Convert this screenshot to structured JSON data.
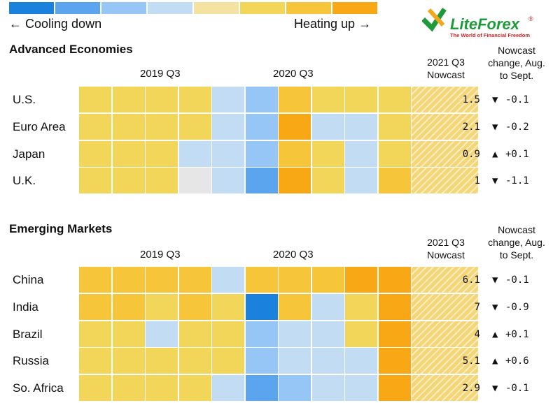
{
  "legend": {
    "colors": [
      "#1a82dc",
      "#5aa5ee",
      "#95c6f5",
      "#c2dcf3",
      "#f4e2a0",
      "#f2d65a",
      "#f6c53a",
      "#f7a814"
    ],
    "left_label": "← Cooling down",
    "right_label": "Heating up →"
  },
  "logo": {
    "name": "LiteForex",
    "tagline": "The World of Financial Freedom",
    "registered": "®"
  },
  "quarter_labels": [
    "2019 Q3",
    "2020 Q3"
  ],
  "nowcast_header": [
    "2021 Q3",
    "Nowcast"
  ],
  "change_header": [
    "Nowcast",
    "change, Aug.",
    "to Sept."
  ],
  "arrow_up": "▲",
  "arrow_down": "▼",
  "sections": [
    {
      "title": "Advanced Economies",
      "rows": [
        {
          "label": "U.S.",
          "nowcast": "1.5",
          "direction": "down",
          "change": "-0.1",
          "cells": [
            "#f2d65a",
            "#f2d65a",
            "#f2d65a",
            "#f2d65a",
            "#c2dcf3",
            "#95c6f5",
            "#f6c53a",
            "#f2d65a",
            "#f2d65a",
            "#f2d65a"
          ]
        },
        {
          "label": "Euro Area",
          "nowcast": "2.1",
          "direction": "down",
          "change": "-0.2",
          "cells": [
            "#f2d65a",
            "#f2d65a",
            "#f2d65a",
            "#f2d65a",
            "#c2dcf3",
            "#95c6f5",
            "#f7a814",
            "#c2dcf3",
            "#c2dcf3",
            "#f2d65a"
          ]
        },
        {
          "label": "Japan",
          "nowcast": "0.9",
          "direction": "up",
          "change": "+0.1",
          "cells": [
            "#f2d65a",
            "#f2d65a",
            "#f2d65a",
            "#c2dcf3",
            "#c2dcf3",
            "#95c6f5",
            "#f6c53a",
            "#f2d65a",
            "#c2dcf3",
            "#f2d65a"
          ]
        },
        {
          "label": "U.K.",
          "nowcast": "1",
          "direction": "down",
          "change": "-1.1",
          "cells": [
            "#f2d65a",
            "#f2d65a",
            "#f2d65a",
            "#e6e6e6",
            "#c2dcf3",
            "#5aa5ee",
            "#f7a814",
            "#f2d65a",
            "#c2dcf3",
            "#f6c53a"
          ]
        }
      ]
    },
    {
      "title": "Emerging Markets",
      "rows": [
        {
          "label": "China",
          "nowcast": "6.1",
          "direction": "down",
          "change": "-0.1",
          "cells": [
            "#f6c53a",
            "#f6c53a",
            "#f6c53a",
            "#f6c53a",
            "#c2dcf3",
            "#f6c53a",
            "#f6c53a",
            "#f6c53a",
            "#f7a814",
            "#f7a814"
          ]
        },
        {
          "label": "India",
          "nowcast": "7",
          "direction": "down",
          "change": "-0.9",
          "cells": [
            "#f6c53a",
            "#f6c53a",
            "#f2d65a",
            "#f6c53a",
            "#f2d65a",
            "#1a82dc",
            "#f6c53a",
            "#c2dcf3",
            "#f2d65a",
            "#f7a814"
          ]
        },
        {
          "label": "Brazil",
          "nowcast": "4",
          "direction": "up",
          "change": "+0.1",
          "cells": [
            "#f2d65a",
            "#f2d65a",
            "#c2dcf3",
            "#f2d65a",
            "#f2d65a",
            "#95c6f5",
            "#c2dcf3",
            "#c2dcf3",
            "#f2d65a",
            "#f7a814"
          ]
        },
        {
          "label": "Russia",
          "nowcast": "5.1",
          "direction": "up",
          "change": "+0.6",
          "cells": [
            "#f2d65a",
            "#f2d65a",
            "#f2d65a",
            "#f2d65a",
            "#f2d65a",
            "#95c6f5",
            "#c2dcf3",
            "#c2dcf3",
            "#c2dcf3",
            "#f7a814"
          ]
        },
        {
          "label": "So. Africa",
          "nowcast": "2.9",
          "direction": "down",
          "change": "-0.1",
          "cells": [
            "#f2d65a",
            "#f2d65a",
            "#f2d65a",
            "#f2d65a",
            "#c2dcf3",
            "#5aa5ee",
            "#95c6f5",
            "#c2dcf3",
            "#c2dcf3",
            "#f7a814"
          ]
        }
      ]
    }
  ],
  "chart_data": {
    "type": "heatmap",
    "title": "",
    "x_labels_shown": [
      "2019 Q3",
      "2020 Q3",
      "2021 Q3 Nowcast"
    ],
    "columns": 10,
    "scale": [
      "Cooling down",
      "Heating up"
    ],
    "panels": [
      {
        "name": "Advanced Economies",
        "rows": [
          "U.S.",
          "Euro Area",
          "Japan",
          "U.K."
        ],
        "nowcast_2021Q3": [
          1.5,
          2.1,
          0.9,
          1
        ],
        "nowcast_change_aug_to_sept": [
          -0.1,
          -0.2,
          0.1,
          -1.1
        ]
      },
      {
        "name": "Emerging Markets",
        "rows": [
          "China",
          "India",
          "Brazil",
          "Russia",
          "So. Africa"
        ],
        "nowcast_2021Q3": [
          6.1,
          7,
          4,
          5.1,
          2.9
        ],
        "nowcast_change_aug_to_sept": [
          -0.1,
          -0.9,
          0.1,
          0.6,
          -0.1
        ]
      }
    ]
  }
}
